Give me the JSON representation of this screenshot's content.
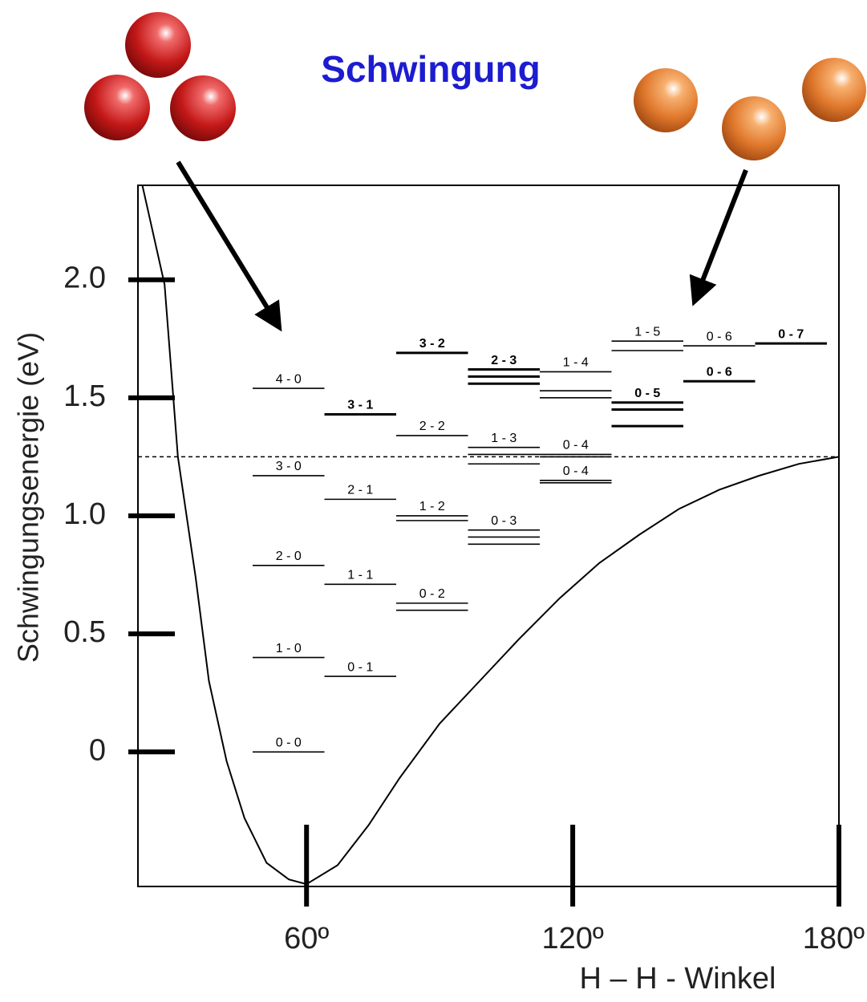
{
  "chart_data": {
    "type": "energy-levels",
    "title": "Schwingung",
    "y_label": "Schwingungsenergie (eV)",
    "x_label": "H – H - Winkel",
    "xlim": [
      22,
      180
    ],
    "ylim": [
      -0.57,
      2.4
    ],
    "xticks": [
      {
        "value": 60,
        "label": "60º"
      },
      {
        "value": 120,
        "label": "120º"
      },
      {
        "value": 180,
        "label": "180º"
      }
    ],
    "yticks": [
      0,
      0.5,
      {
        "value": 1,
        "label": "1.0"
      },
      1.5,
      {
        "value": 2,
        "label": "2.0"
      }
    ],
    "curve": {
      "x": [
        23,
        28,
        31,
        35,
        38,
        42,
        46,
        51,
        56,
        60,
        67,
        74,
        81,
        90,
        99,
        108,
        117,
        126,
        135,
        144,
        153,
        162,
        171,
        180
      ],
      "values": [
        2.4,
        1.98,
        1.25,
        0.74,
        0.3,
        -0.04,
        -0.28,
        -0.47,
        -0.54,
        -0.56,
        -0.48,
        -0.31,
        -0.11,
        0.12,
        0.3,
        0.48,
        0.65,
        0.8,
        0.92,
        1.03,
        1.11,
        1.17,
        1.22,
        1.25
      ]
    },
    "dissociation": 1.25,
    "columns": [
      [
        {
          "label": "0 - 0",
          "values": [
            0.0
          ],
          "bold": false
        },
        {
          "label": "1 - 0",
          "values": [
            0.4
          ],
          "bold": false
        },
        {
          "label": "2 - 0",
          "values": [
            0.79
          ],
          "bold": false
        },
        {
          "label": "3 - 0",
          "values": [
            1.17
          ],
          "bold": false
        },
        {
          "label": "4 - 0",
          "values": [
            1.54
          ],
          "bold": false
        }
      ],
      [
        {
          "label": "0 - 1",
          "values": [
            0.32
          ],
          "bold": false
        },
        {
          "label": "1 - 1",
          "values": [
            0.71
          ],
          "bold": false
        },
        {
          "label": "2 - 1",
          "values": [
            1.07
          ],
          "bold": false
        },
        {
          "label": "3 - 1",
          "values": [
            1.43
          ],
          "bold": true
        }
      ],
      [
        {
          "label": "0 - 2",
          "values": [
            0.63,
            0.6
          ],
          "bold": false
        },
        {
          "label": "1 - 2",
          "values": [
            1.0,
            0.98
          ],
          "bold": false
        },
        {
          "label": "2 - 2",
          "values": [
            1.34
          ],
          "bold": false
        },
        {
          "label": "3 - 2",
          "values": [
            1.69
          ],
          "bold": true
        }
      ],
      [
        {
          "label": "0 - 3",
          "values": [
            0.94,
            0.91,
            0.88
          ],
          "bold": false
        },
        {
          "label": "1 - 3",
          "values": [
            1.29,
            1.26,
            1.22
          ],
          "bold": false
        },
        {
          "label": "2 - 3",
          "values": [
            1.62,
            1.59,
            1.56
          ],
          "bold": true
        }
      ],
      [
        {
          "label": "0 - 4",
          "values": [
            1.15,
            1.14
          ],
          "bold": false
        },
        {
          "label": "0 - 4",
          "values": [
            1.26,
            1.25
          ],
          "bold": false
        },
        {
          "label": "1 - 4",
          "values": [
            1.61,
            1.53,
            1.5
          ],
          "bold": false
        }
      ],
      [
        {
          "label": "0 - 5",
          "values": [
            1.48,
            1.45,
            1.38
          ],
          "bold": true
        },
        {
          "label": "1 - 5",
          "values": [
            1.74,
            1.7
          ],
          "bold": false
        }
      ],
      [
        {
          "label": "0 - 6",
          "values": [
            1.57
          ],
          "bold": true
        },
        {
          "label": "0 - 6",
          "values": [
            1.72
          ],
          "bold": false
        }
      ],
      [
        {
          "label": "0 - 7",
          "values": [
            1.73
          ],
          "bold": true
        }
      ]
    ]
  }
}
